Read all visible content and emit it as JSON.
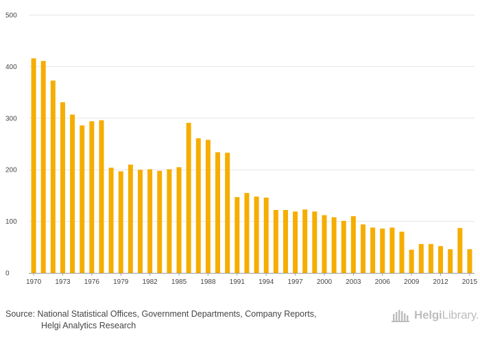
{
  "chart_data": {
    "type": "bar",
    "title": "",
    "xlabel": "",
    "ylabel": "",
    "ylim": [
      0,
      500
    ],
    "yticks": [
      0,
      100,
      200,
      300,
      400,
      500
    ],
    "grid": true,
    "bar_color": "#F5AD00",
    "grid_color": "#E6E6E6",
    "categories": [
      "1970",
      "1971",
      "1972",
      "1973",
      "1974",
      "1975",
      "1976",
      "1977",
      "1978",
      "1979",
      "1980",
      "1981",
      "1982",
      "1983",
      "1984",
      "1985",
      "1986",
      "1987",
      "1988",
      "1989",
      "1990",
      "1991",
      "1992",
      "1993",
      "1994",
      "1995",
      "1996",
      "1997",
      "1998",
      "1999",
      "2000",
      "2001",
      "2002",
      "2003",
      "2004",
      "2005",
      "2006",
      "2007",
      "2008",
      "2009",
      "2010",
      "2011",
      "2012",
      "2013",
      "2014",
      "2015"
    ],
    "xtick_labels": [
      "1970",
      "1973",
      "1976",
      "1979",
      "1982",
      "1985",
      "1988",
      "1991",
      "1994",
      "1997",
      "2000",
      "2003",
      "2006",
      "2009",
      "2012",
      "2015"
    ],
    "values": [
      416,
      411,
      373,
      331,
      307,
      286,
      294,
      296,
      204,
      197,
      210,
      200,
      201,
      198,
      201,
      205,
      291,
      261,
      258,
      234,
      233,
      147,
      155,
      148,
      146,
      122,
      122,
      119,
      123,
      119,
      112,
      108,
      101,
      110,
      94,
      88,
      86,
      88,
      80,
      45,
      56,
      56,
      52,
      46,
      87,
      46
    ]
  },
  "footer": {
    "source_line1": "Source: National Statistical Offices, Government Departments, Company Reports,",
    "source_line2": "Helgi Analytics Research",
    "brand_name_part1": "Helgi",
    "brand_name_part2": "Library.",
    "brand_icon": "library-building-icon",
    "brand_color": "#BDBDBD"
  }
}
